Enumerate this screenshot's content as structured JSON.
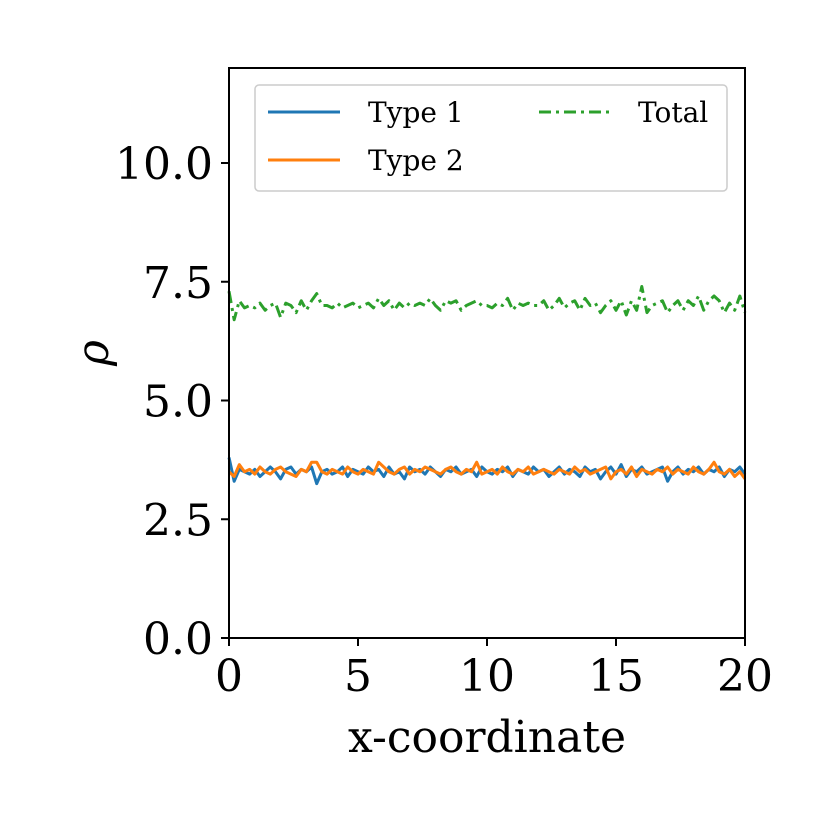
{
  "chart_data": {
    "type": "line",
    "title": "",
    "xlabel": "x-coordinate",
    "ylabel": "ρ",
    "xlim": [
      0,
      20
    ],
    "ylim": [
      0,
      12
    ],
    "xticks": [
      0,
      5,
      10,
      15,
      20
    ],
    "xtick_labels": [
      "0",
      "5",
      "10",
      "15",
      "20"
    ],
    "yticks": [
      0,
      2.5,
      5,
      7.5,
      10
    ],
    "ytick_labels": [
      "0.0",
      "2.5",
      "5.0",
      "7.5",
      "10.0"
    ],
    "grid": false,
    "legend_position": "top",
    "x": [
      0,
      0.2,
      0.4,
      0.6,
      0.8,
      1,
      1.2,
      1.4,
      1.6,
      1.8,
      2,
      2.2,
      2.4,
      2.6,
      2.8,
      3,
      3.2,
      3.4,
      3.6,
      3.8,
      4,
      4.2,
      4.4,
      4.6,
      4.8,
      5,
      5.2,
      5.4,
      5.6,
      5.8,
      6,
      6.2,
      6.4,
      6.6,
      6.8,
      7,
      7.2,
      7.4,
      7.6,
      7.8,
      8,
      8.2,
      8.4,
      8.6,
      8.8,
      9,
      9.2,
      9.4,
      9.6,
      9.8,
      10,
      10.2,
      10.4,
      10.6,
      10.8,
      11,
      11.2,
      11.4,
      11.6,
      11.8,
      12,
      12.2,
      12.4,
      12.6,
      12.8,
      13,
      13.2,
      13.4,
      13.6,
      13.8,
      14,
      14.2,
      14.4,
      14.6,
      14.8,
      15,
      15.2,
      15.4,
      15.6,
      15.8,
      16,
      16.2,
      16.4,
      16.6,
      16.8,
      17,
      17.2,
      17.4,
      17.6,
      17.8,
      18,
      18.2,
      18.4,
      18.6,
      18.8,
      19,
      19.2,
      19.4,
      19.6,
      19.8,
      20
    ],
    "series": [
      {
        "name": "Type 1",
        "color": "#1f77b4",
        "linestyle": "solid",
        "values": [
          3.8,
          3.3,
          3.55,
          3.5,
          3.45,
          3.55,
          3.4,
          3.5,
          3.6,
          3.5,
          3.35,
          3.55,
          3.6,
          3.45,
          3.55,
          3.5,
          3.6,
          3.25,
          3.5,
          3.55,
          3.45,
          3.5,
          3.6,
          3.4,
          3.55,
          3.5,
          3.45,
          3.6,
          3.5,
          3.55,
          3.4,
          3.6,
          3.45,
          3.5,
          3.35,
          3.6,
          3.5,
          3.55,
          3.45,
          3.6,
          3.5,
          3.4,
          3.55,
          3.5,
          3.6,
          3.45,
          3.5,
          3.55,
          3.4,
          3.6,
          3.5,
          3.45,
          3.55,
          3.5,
          3.6,
          3.4,
          3.55,
          3.5,
          3.45,
          3.6,
          3.5,
          3.55,
          3.4,
          3.5,
          3.6,
          3.45,
          3.55,
          3.5,
          3.4,
          3.6,
          3.5,
          3.55,
          3.35,
          3.5,
          3.6,
          3.45,
          3.65,
          3.4,
          3.55,
          3.5,
          3.6,
          3.45,
          3.5,
          3.55,
          3.6,
          3.3,
          3.5,
          3.6,
          3.45,
          3.55,
          3.5,
          3.6,
          3.45,
          3.55,
          3.5,
          3.6,
          3.4,
          3.55,
          3.5,
          3.6,
          3.45
        ]
      },
      {
        "name": "Type 2",
        "color": "#ff7f0e",
        "linestyle": "solid",
        "values": [
          3.5,
          3.4,
          3.65,
          3.5,
          3.55,
          3.45,
          3.6,
          3.5,
          3.45,
          3.55,
          3.6,
          3.5,
          3.45,
          3.4,
          3.55,
          3.5,
          3.7,
          3.7,
          3.5,
          3.45,
          3.55,
          3.5,
          3.45,
          3.6,
          3.5,
          3.45,
          3.55,
          3.5,
          3.45,
          3.7,
          3.6,
          3.5,
          3.45,
          3.55,
          3.6,
          3.45,
          3.55,
          3.5,
          3.6,
          3.55,
          3.5,
          3.45,
          3.55,
          3.6,
          3.5,
          3.45,
          3.55,
          3.5,
          3.7,
          3.45,
          3.5,
          3.55,
          3.45,
          3.6,
          3.5,
          3.45,
          3.55,
          3.5,
          3.6,
          3.45,
          3.5,
          3.55,
          3.5,
          3.45,
          3.55,
          3.5,
          3.45,
          3.6,
          3.5,
          3.55,
          3.45,
          3.5,
          3.55,
          3.6,
          3.35,
          3.5,
          3.55,
          3.45,
          3.6,
          3.4,
          3.55,
          3.5,
          3.45,
          3.55,
          3.5,
          3.6,
          3.45,
          3.55,
          3.5,
          3.45,
          3.6,
          3.5,
          3.45,
          3.55,
          3.7,
          3.5,
          3.45,
          3.55,
          3.4,
          3.5,
          3.35
        ]
      },
      {
        "name": "Total",
        "color": "#2ca02c",
        "linestyle": "dashdot",
        "values": [
          7.3,
          6.7,
          7.1,
          6.95,
          7.0,
          6.95,
          7.05,
          6.9,
          7.0,
          7.05,
          6.75,
          7.05,
          7.0,
          6.85,
          7.1,
          6.9,
          7.1,
          7.25,
          7.0,
          7.0,
          6.95,
          7.05,
          6.95,
          7.0,
          7.05,
          6.95,
          7.0,
          7.05,
          6.95,
          7.15,
          7.0,
          7.1,
          6.9,
          7.05,
          6.95,
          7.05,
          7.0,
          7.05,
          7.0,
          7.15,
          7.0,
          6.9,
          7.1,
          7.05,
          7.1,
          6.9,
          7.0,
          7.05,
          7.1,
          7.0,
          7.0,
          6.95,
          7.05,
          7.0,
          7.15,
          6.9,
          7.05,
          7.0,
          7.05,
          7.0,
          7.0,
          7.1,
          6.9,
          7.0,
          7.15,
          6.95,
          7.05,
          7.1,
          6.9,
          7.15,
          7.0,
          7.05,
          6.85,
          7.0,
          7.1,
          6.9,
          7.1,
          6.8,
          7.1,
          6.9,
          7.4,
          6.85,
          7.0,
          7.05,
          7.1,
          6.85,
          7.0,
          7.1,
          6.9,
          7.1,
          7.0,
          7.2,
          6.9,
          7.1,
          7.2,
          7.1,
          6.85,
          7.05,
          6.9,
          7.2,
          6.85
        ]
      }
    ]
  }
}
